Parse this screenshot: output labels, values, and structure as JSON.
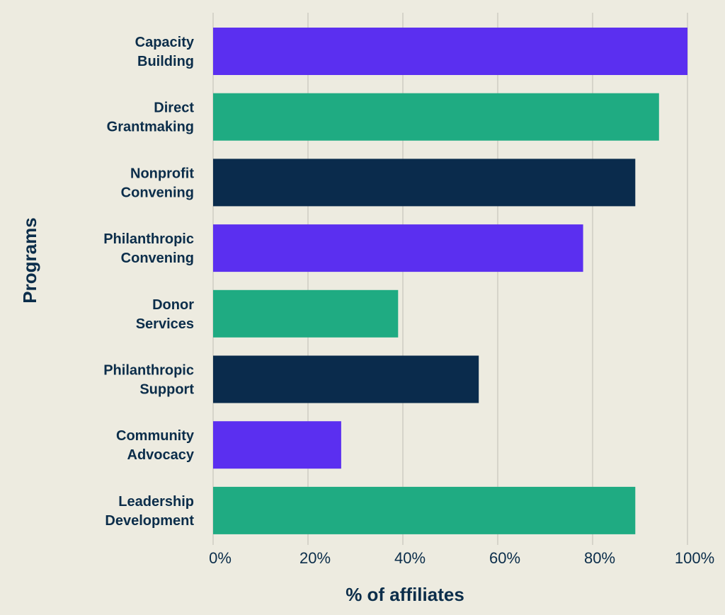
{
  "chart_data": {
    "type": "bar",
    "orientation": "horizontal",
    "categories": [
      [
        "Capacity",
        "Building"
      ],
      [
        "Direct",
        "Grantmaking"
      ],
      [
        "Nonprofit",
        "Convening"
      ],
      [
        "Philanthropic",
        "Convening"
      ],
      [
        "Donor",
        "Services"
      ],
      [
        "Philanthropic",
        "Support"
      ],
      [
        "Community",
        "Advocacy"
      ],
      [
        "Leadership",
        "Development"
      ]
    ],
    "values": [
      100,
      94,
      89,
      78,
      39,
      56,
      27,
      89
    ],
    "bar_colors": [
      "#5b2ff0",
      "#1fab82",
      "#0a2b4c",
      "#5b2ff0",
      "#1fab82",
      "#0a2b4c",
      "#5b2ff0",
      "#1fab82"
    ],
    "xlabel": "% of affiliates",
    "ylabel": "Programs",
    "xlim": [
      0,
      100
    ],
    "xticks": [
      0,
      20,
      40,
      60,
      80,
      100
    ],
    "xtick_labels": [
      "0%",
      "20%",
      "40%",
      "60%",
      "80%",
      "100%"
    ],
    "grid": "vertical",
    "legend": "none"
  },
  "colors": {
    "background": "#edebe0",
    "text": "#0b2d4a",
    "grid": "#bfbdb5"
  }
}
